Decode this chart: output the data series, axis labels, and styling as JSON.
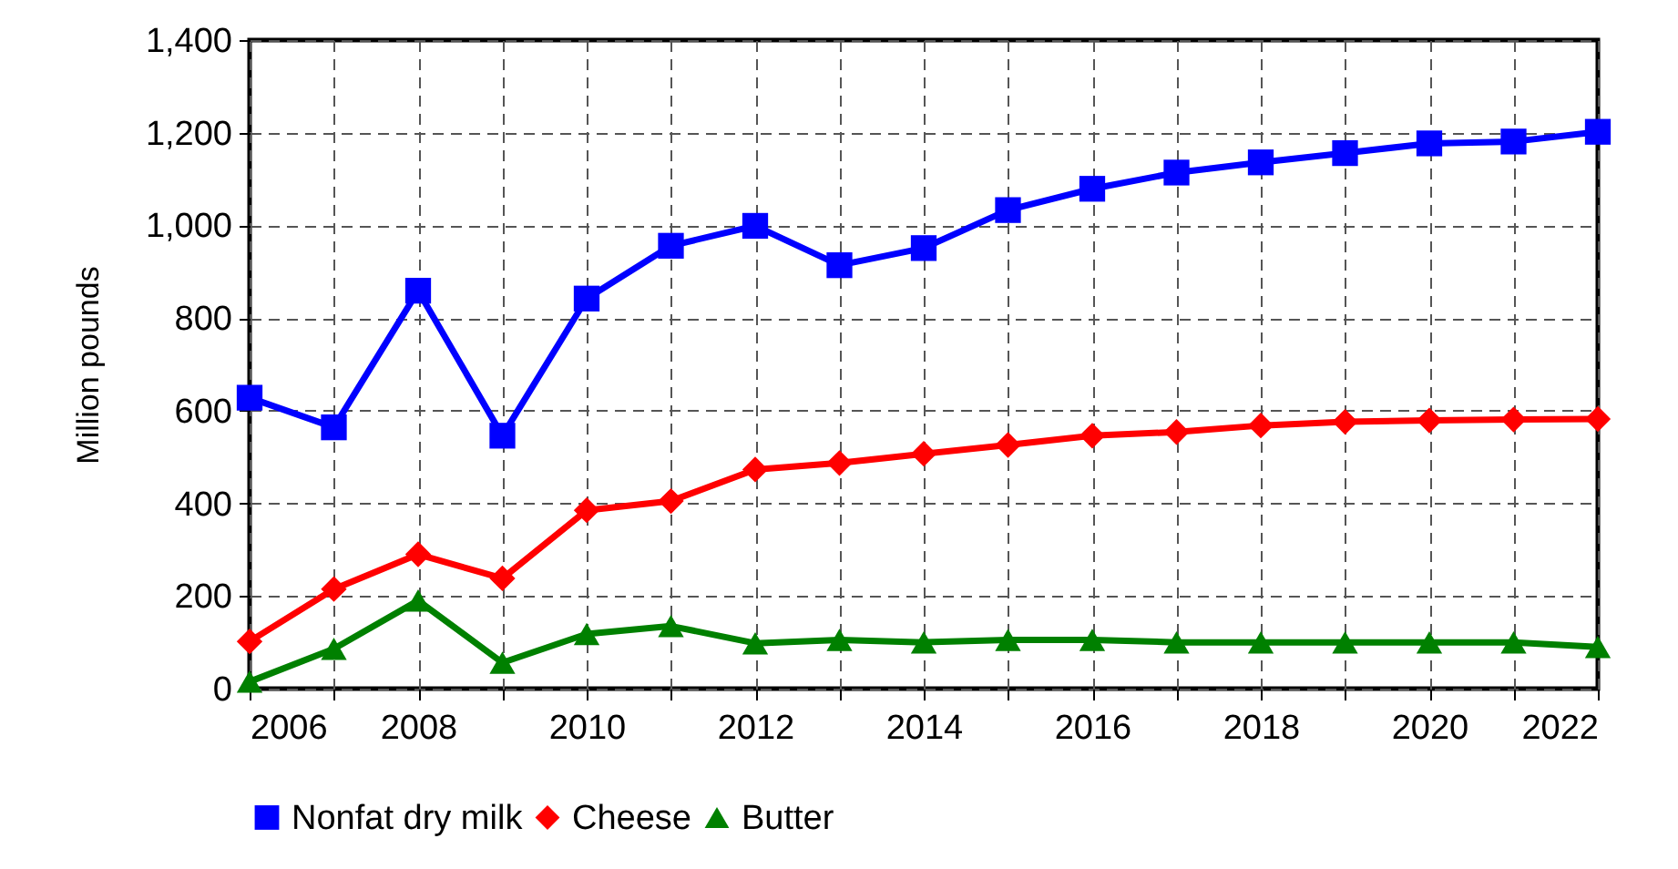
{
  "chart_data": {
    "type": "line",
    "ylabel": "Million pounds",
    "x": [
      2006,
      2007,
      2008,
      2009,
      2010,
      2011,
      2012,
      2013,
      2014,
      2015,
      2016,
      2017,
      2018,
      2019,
      2020,
      2021,
      2022
    ],
    "series": [
      {
        "name": "Nonfat dry milk",
        "color": "#0000ff",
        "marker": "square",
        "values": [
          628,
          564,
          859,
          546,
          842,
          956,
          999,
          914,
          951,
          1033,
          1079,
          1114,
          1136,
          1156,
          1177,
          1181,
          1202
        ]
      },
      {
        "name": "Cheese",
        "color": "#ff0000",
        "marker": "diamond",
        "values": [
          102,
          215,
          290,
          238,
          385,
          405,
          473,
          487,
          507,
          526,
          546,
          554,
          568,
          576,
          579,
          581,
          582
        ]
      },
      {
        "name": "Butter",
        "color": "#008000",
        "marker": "triangle",
        "values": [
          15,
          86,
          190,
          56,
          118,
          135,
          98,
          105,
          100,
          105,
          105,
          100,
          100,
          100,
          100,
          100,
          90
        ]
      }
    ],
    "xlim": [
      2006,
      2022
    ],
    "xticks": [
      2006,
      {
        "value": 2007,
        "label": null
      },
      2008,
      {
        "value": 2009,
        "label": null
      },
      2010,
      {
        "value": 2011,
        "label": null
      },
      2012,
      {
        "value": 2013,
        "label": null
      },
      2014,
      {
        "value": 2015,
        "label": null
      },
      2016,
      {
        "value": 2017,
        "label": null
      },
      2018,
      {
        "value": 2019,
        "label": null
      },
      2020,
      {
        "value": 2021,
        "label": null
      },
      2022
    ],
    "ylim": [
      0,
      1400
    ],
    "yticks": [
      0,
      200,
      400,
      600,
      800,
      {
        "value": 1000,
        "label": "1,000"
      },
      {
        "value": 1200,
        "label": "1,200"
      },
      {
        "value": 1400,
        "label": "1,400"
      }
    ],
    "grid": true,
    "legend": "bottom",
    "line_style": "solid"
  }
}
